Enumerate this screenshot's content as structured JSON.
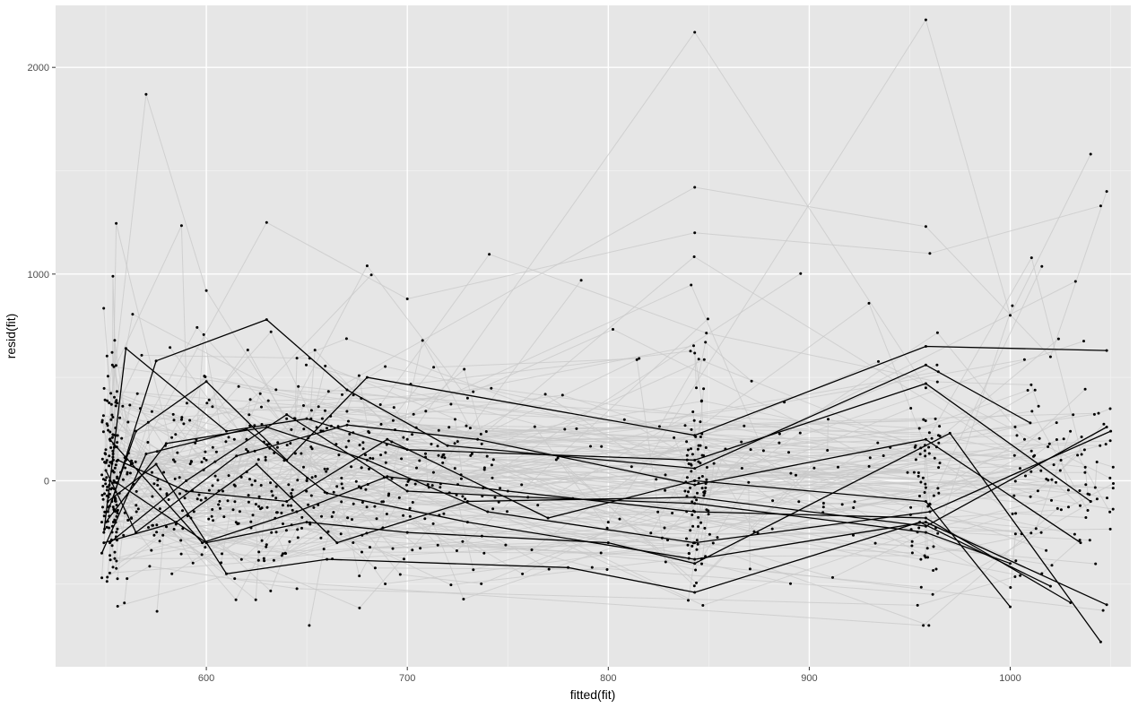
{
  "chart_data": {
    "type": "line",
    "title": "",
    "xlabel": "fitted(fit)",
    "ylabel": "resid(fit)",
    "xlim": [
      525,
      1060
    ],
    "ylim": [
      -900,
      2300
    ],
    "x_ticks": [
      600,
      700,
      800,
      900,
      1000
    ],
    "y_ticks": [
      0,
      1000,
      2000
    ],
    "x_tick_labels": [
      "600",
      "700",
      "800",
      "900",
      "1000"
    ],
    "y_tick_labels": [
      "0",
      "1000",
      "2000"
    ],
    "grid": true,
    "legend": "none",
    "colors": {
      "panel": "#e6e6e6",
      "highlight": "#000000",
      "background_lines": "#c8c8c8",
      "points": "#000000"
    },
    "background_series_count": 150,
    "background_series_examples": [
      {
        "x": [
          550,
          570,
          600,
          640,
          680,
          730
        ],
        "y": [
          150,
          1870,
          920,
          300,
          1040,
          400
        ]
      },
      {
        "x": [
          555,
          600,
          700,
          843,
          958,
          1040
        ],
        "y": [
          -100,
          100,
          200,
          2170,
          450,
          -100
        ]
      },
      {
        "x": [
          560,
          650,
          800,
          958,
          1000,
          1040
        ],
        "y": [
          100,
          0,
          -200,
          2230,
          800,
          1580
        ]
      },
      {
        "x": [
          552,
          620,
          843,
          958,
          1020,
          1048
        ],
        "y": [
          0,
          200,
          1420,
          1230,
          600,
          1400
        ]
      },
      {
        "x": [
          548,
          630,
          700,
          843,
          960,
          1045
        ],
        "y": [
          -200,
          1250,
          880,
          1200,
          1100,
          1330
        ]
      }
    ],
    "series": [
      {
        "x": [
          551,
          565,
          600,
          640,
          680,
          843,
          958,
          1048
        ],
        "y": [
          -150,
          240,
          480,
          100,
          500,
          220,
          650,
          630
        ]
      },
      {
        "x": [
          553,
          575,
          630,
          670,
          720,
          843,
          958,
          1010
        ],
        "y": [
          -100,
          580,
          780,
          440,
          170,
          60,
          560,
          280
        ]
      },
      {
        "x": [
          549,
          560,
          610,
          650,
          700,
          843,
          958,
          1040
        ],
        "y": [
          -250,
          640,
          240,
          300,
          150,
          100,
          470,
          -100
        ]
      },
      {
        "x": [
          552,
          590,
          640,
          700,
          760,
          843,
          958,
          1000
        ],
        "y": [
          -300,
          0,
          320,
          -50,
          -80,
          -110,
          -250,
          -400
        ]
      },
      {
        "x": [
          548,
          570,
          620,
          660,
          730,
          843,
          958,
          1048
        ],
        "y": [
          -350,
          130,
          250,
          -60,
          -200,
          -380,
          -200,
          -600
        ]
      },
      {
        "x": [
          550,
          580,
          630,
          680,
          740,
          843,
          960,
          1050
        ],
        "y": [
          -200,
          180,
          260,
          100,
          -150,
          -300,
          -150,
          240
        ]
      },
      {
        "x": [
          554,
          600,
          650,
          700,
          800,
          843,
          970,
          1045
        ],
        "y": [
          0,
          -300,
          -200,
          -250,
          -300,
          -400,
          230,
          -780
        ]
      },
      {
        "x": [
          551,
          575,
          610,
          660,
          780,
          843,
          955,
          1020
        ],
        "y": [
          -100,
          80,
          -450,
          -380,
          -420,
          -540,
          -200,
          -510
        ]
      },
      {
        "x": [
          550,
          565,
          615,
          670,
          735,
          843,
          958,
          1035
        ],
        "y": [
          50,
          -250,
          120,
          270,
          200,
          -20,
          200,
          -300
        ]
      },
      {
        "x": [
          556,
          590,
          640,
          690,
          770,
          843,
          958,
          1000
        ],
        "y": [
          100,
          -50,
          -100,
          200,
          -180,
          0,
          -100,
          -610
        ]
      },
      {
        "x": [
          549,
          585,
          625,
          665,
          730,
          843,
          958,
          1048
        ],
        "y": [
          -300,
          -200,
          80,
          -300,
          -100,
          -80,
          -220,
          260
        ]
      },
      {
        "x": [
          552,
          598,
          645,
          690,
          750,
          843,
          958,
          1030
        ],
        "y": [
          200,
          -300,
          -150,
          20,
          -50,
          -150,
          -180,
          -590
        ]
      }
    ]
  }
}
